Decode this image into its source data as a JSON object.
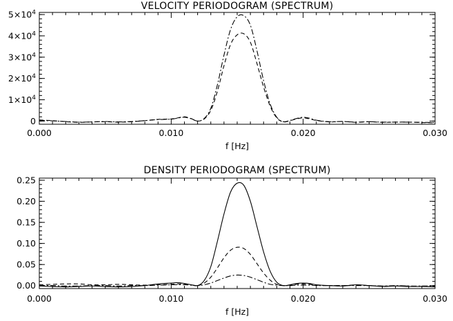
{
  "chart_data": [
    {
      "type": "line",
      "title": "VELOCITY PERIODOGRAM (SPECTRUM)",
      "xlabel": "f [Hz]",
      "ylabel": "",
      "xlim": [
        0.0,
        0.03
      ],
      "ylim": [
        -1500,
        51000
      ],
      "x_ticks": [
        {
          "value": 0.0,
          "label": "0.000"
        },
        {
          "value": 0.01,
          "label": "0.010"
        },
        {
          "value": 0.02,
          "label": "0.020"
        },
        {
          "value": 0.03,
          "label": "0.030"
        }
      ],
      "y_ticks": [
        {
          "value": 0,
          "label": "0",
          "mant": "",
          "exp": ""
        },
        {
          "value": 10000,
          "label": "1×10^4",
          "mant": "1×10",
          "exp": "4"
        },
        {
          "value": 20000,
          "label": "2×10^4",
          "mant": "2×10",
          "exp": "4"
        },
        {
          "value": 30000,
          "label": "3×10^4",
          "mant": "3×10",
          "exp": "4"
        },
        {
          "value": 40000,
          "label": "4×10^4",
          "mant": "4×10",
          "exp": "4"
        },
        {
          "value": 50000,
          "label": "5×10^4",
          "mant": "5×10",
          "exp": "4"
        }
      ],
      "series": [
        {
          "linestyle": "dashed",
          "x": [
            0.0,
            0.001,
            0.002,
            0.003,
            0.004,
            0.005,
            0.006,
            0.007,
            0.008,
            0.009,
            0.01,
            0.0105,
            0.011,
            0.0115,
            0.012,
            0.0125,
            0.013,
            0.0135,
            0.014,
            0.0145,
            0.015,
            0.0155,
            0.016,
            0.0165,
            0.017,
            0.0175,
            0.018,
            0.0185,
            0.019,
            0.0195,
            0.02,
            0.0205,
            0.021,
            0.022,
            0.023,
            0.024,
            0.025,
            0.026,
            0.027,
            0.028,
            0.029,
            0.03
          ],
          "y": [
            500,
            200,
            -300,
            -600,
            -400,
            -300,
            -500,
            -300,
            200,
            800,
            1000,
            1500,
            2000,
            1200,
            0,
            1000,
            5000,
            14000,
            26000,
            36000,
            40500,
            41000,
            37000,
            27000,
            16000,
            7000,
            1500,
            -400,
            200,
            1000,
            1500,
            1000,
            300,
            -400,
            -200,
            -600,
            -300,
            -600,
            -500,
            -500,
            -700,
            -800
          ]
        },
        {
          "linestyle": "dash-dot",
          "x": [
            0.0,
            0.001,
            0.002,
            0.003,
            0.004,
            0.005,
            0.006,
            0.007,
            0.008,
            0.009,
            0.01,
            0.0105,
            0.011,
            0.0115,
            0.012,
            0.0125,
            0.013,
            0.0135,
            0.014,
            0.0145,
            0.015,
            0.0155,
            0.016,
            0.0165,
            0.017,
            0.0175,
            0.018,
            0.0185,
            0.019,
            0.0195,
            0.02,
            0.0205,
            0.021,
            0.022,
            0.023,
            0.024,
            0.025,
            0.026,
            0.027,
            0.028,
            0.029,
            0.03
          ],
          "y": [
            300,
            100,
            -200,
            -500,
            -400,
            -200,
            -400,
            -200,
            200,
            700,
            900,
            1400,
            1800,
            1100,
            0,
            1200,
            6000,
            17000,
            31000,
            43000,
            49000,
            49500,
            45000,
            33000,
            19000,
            8000,
            1800,
            -300,
            300,
            1200,
            1800,
            1300,
            400,
            -300,
            -200,
            -500,
            -300,
            -500,
            -500,
            -500,
            -600,
            -700
          ]
        }
      ]
    },
    {
      "type": "line",
      "title": "DENSITY PERIODOGRAM (SPECTRUM)",
      "xlabel": "f [Hz]",
      "ylabel": "",
      "xlim": [
        0.0,
        0.03
      ],
      "ylim": [
        -0.007,
        0.255
      ],
      "x_ticks": [
        {
          "value": 0.0,
          "label": "0.000"
        },
        {
          "value": 0.01,
          "label": "0.010"
        },
        {
          "value": 0.02,
          "label": "0.020"
        },
        {
          "value": 0.03,
          "label": "0.030"
        }
      ],
      "y_ticks": [
        {
          "value": 0.0,
          "label": "0.00"
        },
        {
          "value": 0.05,
          "label": "0.05"
        },
        {
          "value": 0.1,
          "label": "0.10"
        },
        {
          "value": 0.15,
          "label": "0.15"
        },
        {
          "value": 0.2,
          "label": "0.20"
        },
        {
          "value": 0.25,
          "label": "0.25"
        }
      ],
      "series": [
        {
          "linestyle": "solid",
          "x": [
            0.0,
            0.001,
            0.002,
            0.003,
            0.004,
            0.005,
            0.006,
            0.007,
            0.008,
            0.009,
            0.01,
            0.0105,
            0.011,
            0.0115,
            0.012,
            0.0125,
            0.013,
            0.0135,
            0.014,
            0.0145,
            0.015,
            0.0155,
            0.016,
            0.0165,
            0.017,
            0.0175,
            0.018,
            0.0185,
            0.019,
            0.0195,
            0.02,
            0.0205,
            0.021,
            0.022,
            0.023,
            0.024,
            0.025,
            0.026,
            0.027,
            0.028,
            0.029,
            0.03
          ],
          "y": [
            -0.001,
            -0.002,
            -0.003,
            -0.002,
            -0.001,
            -0.002,
            -0.003,
            -0.002,
            0.0,
            0.004,
            0.006,
            0.007,
            0.005,
            0.002,
            0.0,
            0.012,
            0.045,
            0.105,
            0.17,
            0.222,
            0.243,
            0.238,
            0.2,
            0.14,
            0.08,
            0.034,
            0.008,
            0.0,
            0.002,
            0.005,
            0.006,
            0.005,
            0.002,
            0.0,
            -0.001,
            0.002,
            0.0,
            -0.002,
            -0.001,
            -0.002,
            -0.002,
            -0.003
          ]
        },
        {
          "linestyle": "dashed",
          "x": [
            0.0,
            0.001,
            0.002,
            0.003,
            0.004,
            0.005,
            0.006,
            0.007,
            0.008,
            0.009,
            0.01,
            0.0105,
            0.011,
            0.0115,
            0.012,
            0.0125,
            0.013,
            0.0135,
            0.014,
            0.0145,
            0.015,
            0.0155,
            0.016,
            0.0165,
            0.017,
            0.0175,
            0.018,
            0.0185,
            0.019,
            0.0195,
            0.02,
            0.0205,
            0.021,
            0.022,
            0.023,
            0.024,
            0.025,
            0.026,
            0.027,
            0.028,
            0.029,
            0.03
          ],
          "y": [
            0.002,
            0.003,
            0.004,
            0.004,
            0.002,
            0.002,
            0.003,
            0.002,
            0.001,
            0.002,
            0.003,
            0.004,
            0.004,
            0.002,
            0.0,
            0.006,
            0.02,
            0.042,
            0.066,
            0.084,
            0.091,
            0.088,
            0.074,
            0.052,
            0.03,
            0.013,
            0.003,
            0.0,
            0.001,
            0.003,
            0.004,
            0.003,
            0.001,
            0.0,
            0.0,
            0.001,
            0.0,
            -0.001,
            -0.001,
            -0.001,
            -0.002,
            -0.002
          ]
        },
        {
          "linestyle": "dash-dot",
          "x": [
            0.0,
            0.001,
            0.002,
            0.003,
            0.004,
            0.005,
            0.006,
            0.007,
            0.008,
            0.009,
            0.01,
            0.0105,
            0.011,
            0.0115,
            0.012,
            0.0125,
            0.013,
            0.0135,
            0.014,
            0.0145,
            0.015,
            0.0155,
            0.016,
            0.0165,
            0.017,
            0.0175,
            0.018,
            0.0185,
            0.019,
            0.0195,
            0.02,
            0.0205,
            0.021,
            0.022,
            0.023,
            0.024,
            0.025,
            0.026,
            0.027,
            0.028,
            0.029,
            0.03
          ],
          "y": [
            0.0,
            0.0,
            -0.001,
            -0.001,
            0.0,
            0.0,
            -0.001,
            0.0,
            0.0,
            0.001,
            0.002,
            0.002,
            0.002,
            0.001,
            0.0,
            0.002,
            0.006,
            0.012,
            0.018,
            0.023,
            0.025,
            0.024,
            0.02,
            0.014,
            0.008,
            0.003,
            0.001,
            0.0,
            0.0,
            0.001,
            0.001,
            0.001,
            0.0,
            0.0,
            0.0,
            0.0,
            0.0,
            -0.001,
            0.0,
            -0.001,
            -0.001,
            -0.001
          ]
        }
      ]
    }
  ]
}
